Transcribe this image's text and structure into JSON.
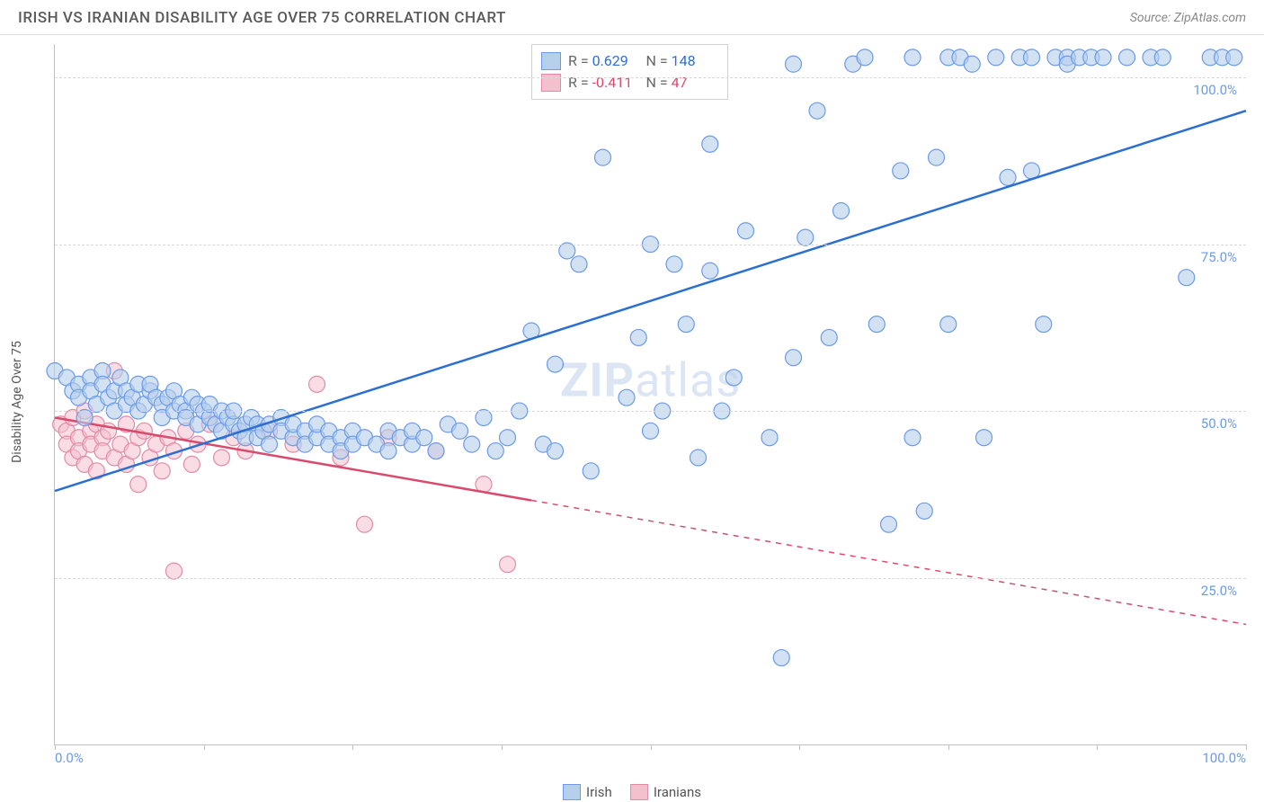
{
  "header": {
    "title": "IRISH VS IRANIAN DISABILITY AGE OVER 75 CORRELATION CHART",
    "source_prefix": "Source: ",
    "source_name": "ZipAtlas.com"
  },
  "chart": {
    "type": "scatter",
    "y_label": "Disability Age Over 75",
    "xlim": [
      0,
      100
    ],
    "ylim": [
      0,
      105
    ],
    "y_ticks": [
      25,
      50,
      75,
      100
    ],
    "y_tick_labels": [
      "25.0%",
      "50.0%",
      "75.0%",
      "100.0%"
    ],
    "x_ticks": [
      0,
      12.5,
      25,
      37.5,
      50,
      62.5,
      75,
      87.5,
      100
    ],
    "x_tick_labels_shown": {
      "0": "0.0%",
      "100": "100.0%"
    },
    "background_color": "#ffffff",
    "grid_color": "#d8d8d8",
    "axis_color": "#c0c0c0",
    "marker_radius": 9,
    "marker_stroke_width": 1.2,
    "series": {
      "irish": {
        "label": "Irish",
        "fill": "#b6cfeb",
        "stroke": "#6b9be8",
        "fill_opacity": 0.6,
        "line_color": "#2b6fd4",
        "line_width": 2.5,
        "R": "0.629",
        "N": "148",
        "trend": {
          "x1": 0,
          "y1": 38,
          "x2": 100,
          "y2": 95,
          "solid_until_x": 100
        },
        "points": [
          [
            0,
            56
          ],
          [
            1,
            55
          ],
          [
            1.5,
            53
          ],
          [
            2,
            54
          ],
          [
            2,
            52
          ],
          [
            2.5,
            49
          ],
          [
            3,
            55
          ],
          [
            3,
            53
          ],
          [
            3.5,
            51
          ],
          [
            4,
            56
          ],
          [
            4,
            54
          ],
          [
            4.5,
            52
          ],
          [
            5,
            53
          ],
          [
            5,
            50
          ],
          [
            5.5,
            55
          ],
          [
            6,
            53
          ],
          [
            6,
            51
          ],
          [
            6.5,
            52
          ],
          [
            7,
            54
          ],
          [
            7,
            50
          ],
          [
            7.5,
            51
          ],
          [
            8,
            53
          ],
          [
            8,
            54
          ],
          [
            8.5,
            52
          ],
          [
            9,
            51
          ],
          [
            9,
            49
          ],
          [
            9.5,
            52
          ],
          [
            10,
            50
          ],
          [
            10,
            53
          ],
          [
            10.5,
            51
          ],
          [
            11,
            50
          ],
          [
            11,
            49
          ],
          [
            11.5,
            52
          ],
          [
            12,
            51
          ],
          [
            12,
            48
          ],
          [
            12.5,
            50
          ],
          [
            13,
            49
          ],
          [
            13,
            51
          ],
          [
            13.5,
            48
          ],
          [
            14,
            50
          ],
          [
            14,
            47
          ],
          [
            14.5,
            49
          ],
          [
            15,
            48
          ],
          [
            15,
            50
          ],
          [
            15.5,
            47
          ],
          [
            16,
            48
          ],
          [
            16,
            46
          ],
          [
            16.5,
            49
          ],
          [
            17,
            48
          ],
          [
            17,
            46
          ],
          [
            17.5,
            47
          ],
          [
            18,
            48
          ],
          [
            18,
            45
          ],
          [
            19,
            49
          ],
          [
            19,
            47
          ],
          [
            20,
            46
          ],
          [
            20,
            48
          ],
          [
            21,
            47
          ],
          [
            21,
            45
          ],
          [
            22,
            46
          ],
          [
            22,
            48
          ],
          [
            23,
            47
          ],
          [
            23,
            45
          ],
          [
            24,
            46
          ],
          [
            24,
            44
          ],
          [
            25,
            47
          ],
          [
            25,
            45
          ],
          [
            26,
            46
          ],
          [
            27,
            45
          ],
          [
            28,
            47
          ],
          [
            28,
            44
          ],
          [
            29,
            46
          ],
          [
            30,
            45
          ],
          [
            30,
            47
          ],
          [
            31,
            46
          ],
          [
            32,
            44
          ],
          [
            33,
            48
          ],
          [
            34,
            47
          ],
          [
            35,
            45
          ],
          [
            36,
            49
          ],
          [
            37,
            44
          ],
          [
            38,
            46
          ],
          [
            39,
            50
          ],
          [
            40,
            62
          ],
          [
            41,
            45
          ],
          [
            42,
            44
          ],
          [
            42,
            57
          ],
          [
            43,
            74
          ],
          [
            44,
            72
          ],
          [
            45,
            41
          ],
          [
            46,
            88
          ],
          [
            47,
            102
          ],
          [
            48,
            52
          ],
          [
            49,
            61
          ],
          [
            50,
            75
          ],
          [
            50,
            47
          ],
          [
            51,
            50
          ],
          [
            52,
            72
          ],
          [
            53,
            63
          ],
          [
            54,
            43
          ],
          [
            55,
            90
          ],
          [
            55,
            71
          ],
          [
            56,
            50
          ],
          [
            57,
            55
          ],
          [
            58,
            77
          ],
          [
            60,
            46
          ],
          [
            61,
            13
          ],
          [
            62,
            58
          ],
          [
            62,
            102
          ],
          [
            63,
            76
          ],
          [
            64,
            95
          ],
          [
            65,
            61
          ],
          [
            66,
            80
          ],
          [
            67,
            102
          ],
          [
            68,
            103
          ],
          [
            69,
            63
          ],
          [
            70,
            33
          ],
          [
            71,
            86
          ],
          [
            72,
            46
          ],
          [
            72,
            103
          ],
          [
            73,
            35
          ],
          [
            74,
            88
          ],
          [
            75,
            103
          ],
          [
            75,
            63
          ],
          [
            76,
            103
          ],
          [
            77,
            102
          ],
          [
            78,
            46
          ],
          [
            79,
            103
          ],
          [
            80,
            85
          ],
          [
            81,
            103
          ],
          [
            82,
            103
          ],
          [
            82,
            86
          ],
          [
            83,
            63
          ],
          [
            84,
            103
          ],
          [
            85,
            103
          ],
          [
            85,
            102
          ],
          [
            86,
            103
          ],
          [
            87,
            103
          ],
          [
            88,
            103
          ],
          [
            90,
            103
          ],
          [
            92,
            103
          ],
          [
            93,
            103
          ],
          [
            95,
            70
          ],
          [
            97,
            103
          ],
          [
            98,
            103
          ],
          [
            99,
            103
          ]
        ]
      },
      "iranians": {
        "label": "Iranians",
        "fill": "#f4c0cd",
        "stroke": "#e38ba5",
        "fill_opacity": 0.55,
        "line_color": "#d94a6f",
        "line_width": 2.5,
        "R": "-0.411",
        "N": "47",
        "trend": {
          "x1": 0,
          "y1": 49,
          "x2": 100,
          "y2": 18,
          "solid_until_x": 40
        },
        "points": [
          [
            0.5,
            48
          ],
          [
            1,
            47
          ],
          [
            1,
            45
          ],
          [
            1.5,
            49
          ],
          [
            1.5,
            43
          ],
          [
            2,
            46
          ],
          [
            2,
            44
          ],
          [
            2.5,
            50
          ],
          [
            2.5,
            42
          ],
          [
            3,
            47
          ],
          [
            3,
            45
          ],
          [
            3.5,
            48
          ],
          [
            3.5,
            41
          ],
          [
            4,
            46
          ],
          [
            4,
            44
          ],
          [
            4.5,
            47
          ],
          [
            5,
            43
          ],
          [
            5,
            56
          ],
          [
            5.5,
            45
          ],
          [
            6,
            48
          ],
          [
            6,
            42
          ],
          [
            6.5,
            44
          ],
          [
            7,
            46
          ],
          [
            7,
            39
          ],
          [
            7.5,
            47
          ],
          [
            8,
            43
          ],
          [
            8.5,
            45
          ],
          [
            9,
            41
          ],
          [
            9.5,
            46
          ],
          [
            10,
            44
          ],
          [
            10,
            26
          ],
          [
            11,
            47
          ],
          [
            11.5,
            42
          ],
          [
            12,
            45
          ],
          [
            13,
            48
          ],
          [
            14,
            43
          ],
          [
            15,
            46
          ],
          [
            16,
            44
          ],
          [
            18,
            47
          ],
          [
            20,
            45
          ],
          [
            22,
            54
          ],
          [
            24,
            43
          ],
          [
            26,
            33
          ],
          [
            28,
            46
          ],
          [
            32,
            44
          ],
          [
            36,
            39
          ],
          [
            38,
            27
          ]
        ]
      }
    },
    "stats_box": {
      "rows": [
        {
          "series": "irish",
          "R_label": "R =",
          "N_label": "N ="
        },
        {
          "series": "iranians",
          "R_label": "R =",
          "N_label": "N ="
        }
      ]
    },
    "legend": [
      {
        "series": "irish"
      },
      {
        "series": "iranians"
      }
    ],
    "watermark": {
      "bold": "ZIP",
      "rest": "atlas"
    }
  }
}
